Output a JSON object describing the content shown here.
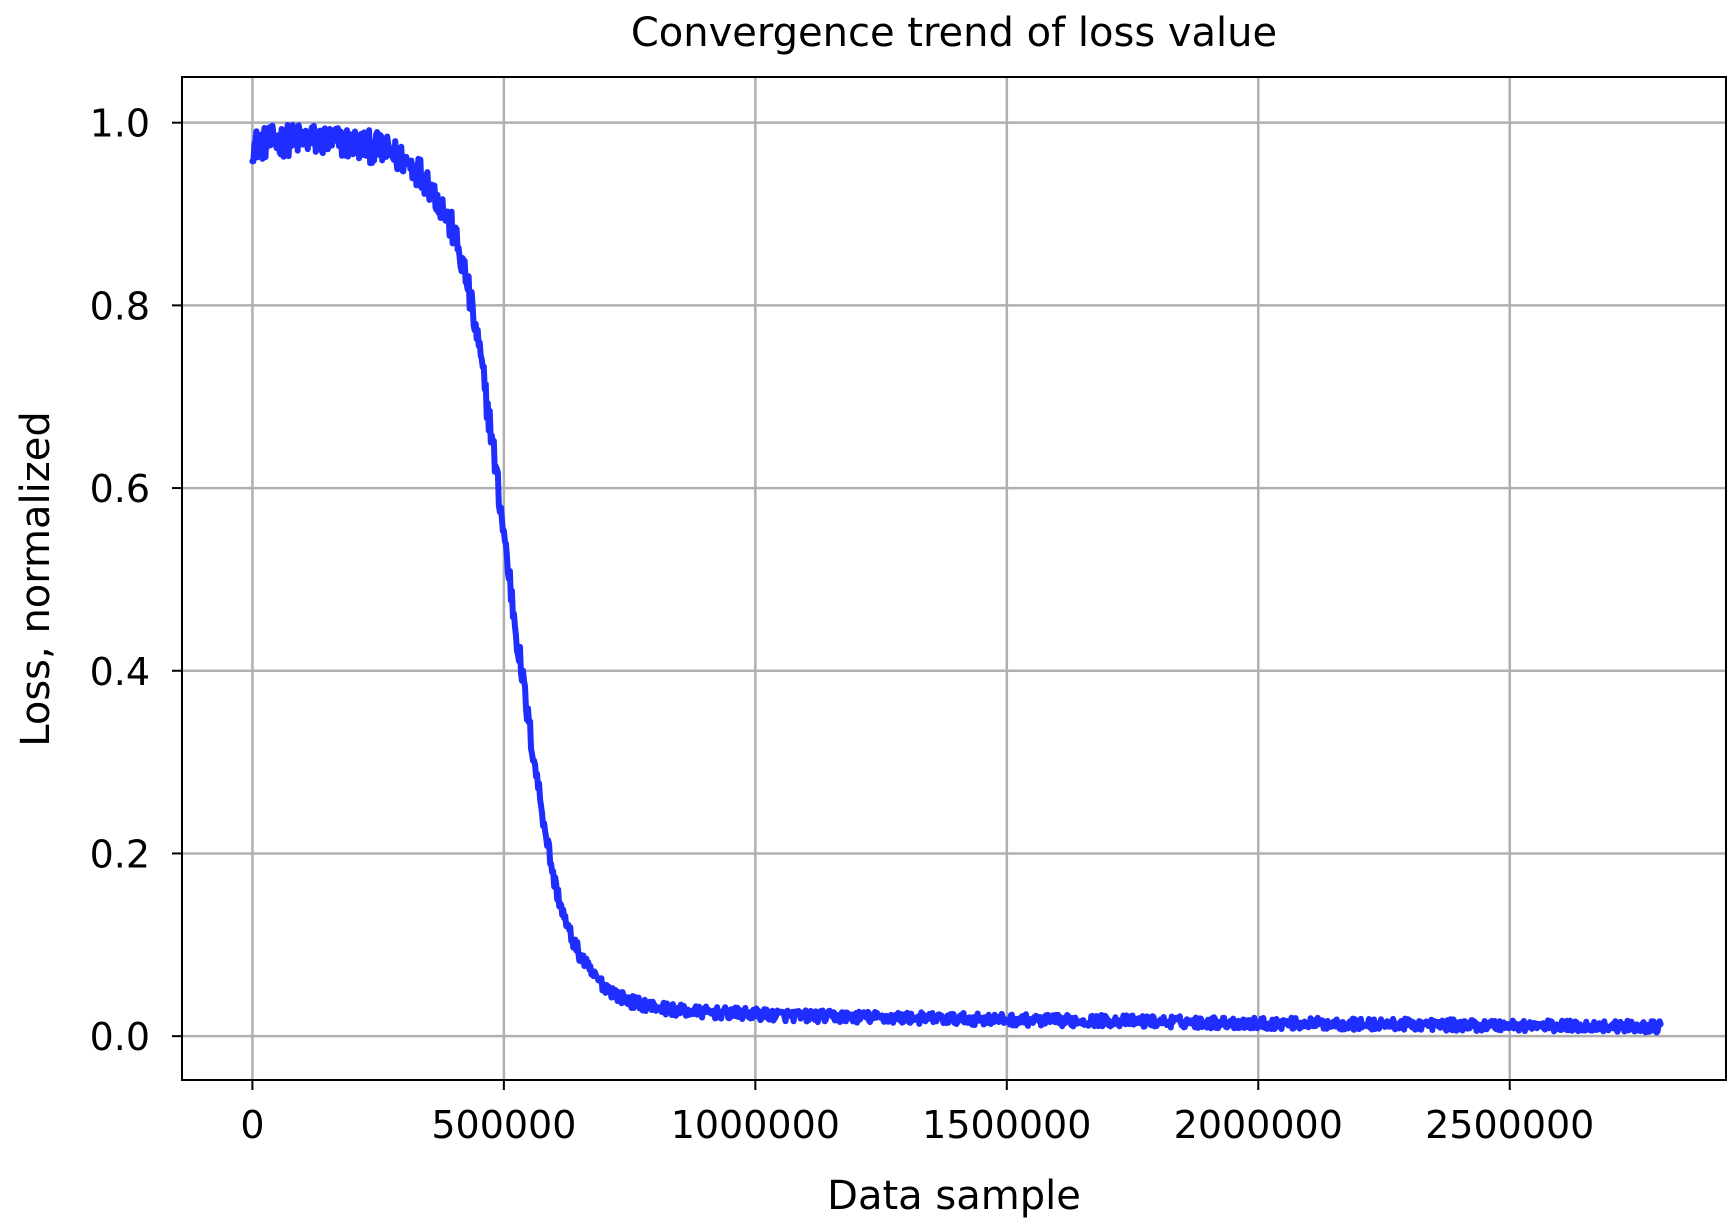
{
  "chart_data": {
    "type": "line",
    "title": "Convergence trend of loss value",
    "xlabel": "Data sample",
    "ylabel": "Loss, normalized",
    "xlim": [
      -140000,
      2930000
    ],
    "ylim": [
      -0.048,
      1.05
    ],
    "xticks": [
      0,
      500000,
      1000000,
      1500000,
      2000000,
      2500000
    ],
    "xtick_labels": [
      "0",
      "500000",
      "1000000",
      "1500000",
      "2000000",
      "2500000"
    ],
    "yticks": [
      0.0,
      0.2,
      0.4,
      0.6,
      0.8,
      1.0
    ],
    "ytick_labels": [
      "0.0",
      "0.2",
      "0.4",
      "0.6",
      "0.8",
      "1.0"
    ],
    "grid": true,
    "legend": "none",
    "series": [
      {
        "color": "#1f2eff",
        "x": [
          0,
          50000,
          100000,
          150000,
          200000,
          250000,
          300000,
          325000,
          350000,
          375000,
          400000,
          425000,
          450000,
          475000,
          500000,
          525000,
          550000,
          575000,
          600000,
          625000,
          650000,
          675000,
          700000,
          725000,
          750000,
          800000,
          850000,
          900000,
          1000000,
          1100000,
          1200000,
          1300000,
          1400000,
          1500000,
          1600000,
          1700000,
          1800000,
          1900000,
          2000000,
          2100000,
          2200000,
          2300000,
          2400000,
          2500000,
          2600000,
          2700000,
          2800000
        ],
        "values": [
          0.975,
          0.98,
          0.982,
          0.98,
          0.977,
          0.972,
          0.96,
          0.95,
          0.935,
          0.91,
          0.88,
          0.83,
          0.755,
          0.66,
          0.55,
          0.44,
          0.34,
          0.25,
          0.17,
          0.12,
          0.09,
          0.068,
          0.055,
          0.045,
          0.038,
          0.032,
          0.028,
          0.026,
          0.024,
          0.022,
          0.021,
          0.02,
          0.019,
          0.018,
          0.017,
          0.017,
          0.016,
          0.015,
          0.014,
          0.014,
          0.013,
          0.013,
          0.012,
          0.012,
          0.011,
          0.011,
          0.01
        ]
      }
    ]
  }
}
